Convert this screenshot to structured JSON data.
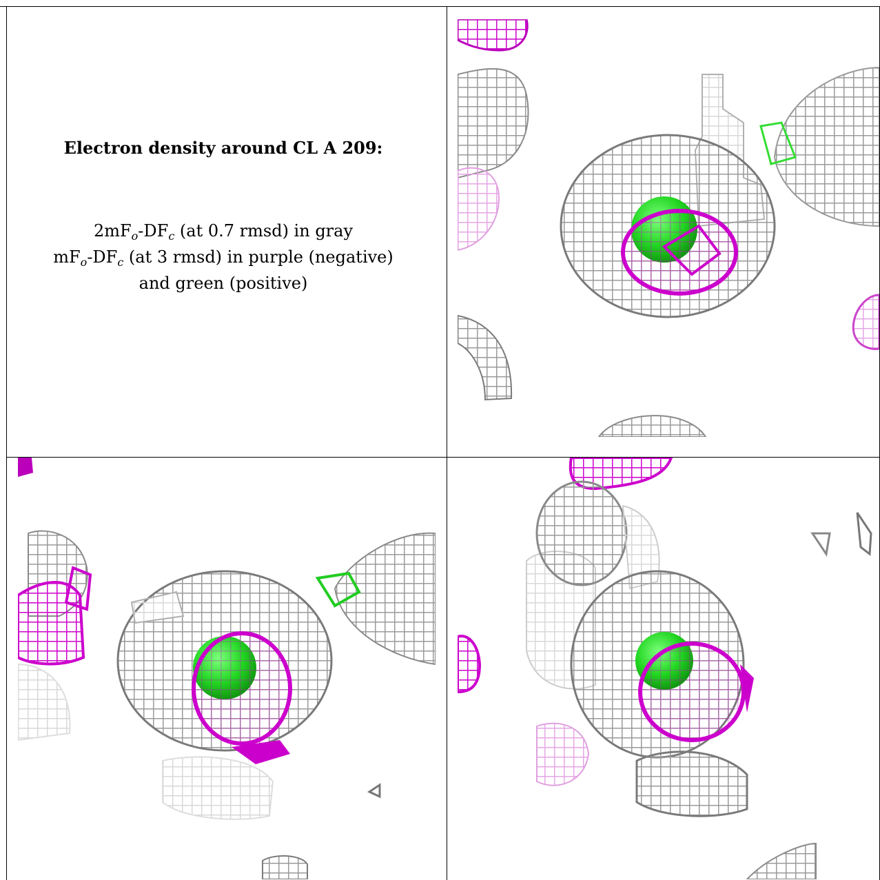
{
  "caption": {
    "title": "Electron density around CL A 209:",
    "line1_a": "2mF",
    "line1_sub1": "o",
    "line1_b": "-DF",
    "line1_sub2": "c",
    "line1_c": " (at 0.7 rmsd) in gray",
    "line2_a": "mF",
    "line2_sub1": "o",
    "line2_b": "-DF",
    "line2_sub2": "c",
    "line2_c": " (at 3 rmsd) in purple (negative)",
    "line3": "and green (positive)"
  },
  "colors": {
    "gray_mesh": "#a0a0a0",
    "purple_mesh": "#cc00cc",
    "green_sphere": "#22dd22"
  },
  "panels": [
    {
      "name": "view-top-right"
    },
    {
      "name": "view-bottom-left"
    },
    {
      "name": "view-bottom-right"
    }
  ]
}
